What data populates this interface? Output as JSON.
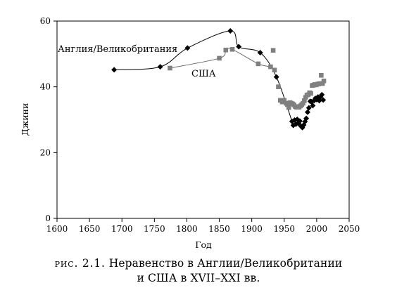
{
  "chart_data": {
    "type": "line",
    "title": "",
    "xlabel": "Год",
    "ylabel": "Джини",
    "xlim": [
      1600,
      2050
    ],
    "ylim": [
      0,
      60
    ],
    "xticks": [
      1600,
      1650,
      1700,
      1750,
      1800,
      1850,
      1900,
      1950,
      2000,
      2050
    ],
    "yticks": [
      0,
      20,
      40,
      60
    ],
    "grid": false,
    "series": [
      {
        "name": "Англия/Великобритания",
        "marker": "diamond",
        "color": "#000000",
        "connected_upto_index": 7,
        "points": [
          [
            1688,
            45.2
          ],
          [
            1759,
            46.1
          ],
          [
            1801,
            51.8
          ],
          [
            1867,
            57.0
          ],
          [
            1880,
            52.2
          ],
          [
            1913,
            50.4
          ],
          [
            1938,
            43.0
          ],
          [
            1962,
            29.5
          ],
          [
            1964,
            28.3
          ],
          [
            1966,
            29.9
          ],
          [
            1968,
            28.6
          ],
          [
            1970,
            30.1
          ],
          [
            1972,
            28.9
          ],
          [
            1974,
            29.6
          ],
          [
            1976,
            28.0
          ],
          [
            1978,
            27.6
          ],
          [
            1980,
            28.4
          ],
          [
            1982,
            29.4
          ],
          [
            1984,
            30.4
          ],
          [
            1986,
            32.3
          ],
          [
            1988,
            33.6
          ],
          [
            1990,
            35.6
          ],
          [
            1992,
            35.5
          ],
          [
            1994,
            34.3
          ],
          [
            1996,
            35.8
          ],
          [
            1998,
            36.5
          ],
          [
            2000,
            36.1
          ],
          [
            2002,
            36.9
          ],
          [
            2004,
            35.8
          ],
          [
            2006,
            37.0
          ],
          [
            2008,
            37.6
          ],
          [
            2010,
            36.0
          ]
        ]
      },
      {
        "name": "США",
        "marker": "square",
        "color": "#808080",
        "connected_upto_index": 6,
        "points": [
          [
            1774,
            45.7
          ],
          [
            1850,
            48.7
          ],
          [
            1860,
            51.2
          ],
          [
            1870,
            51.4
          ],
          [
            1910,
            47.0
          ],
          [
            1929,
            46.1
          ],
          [
            1935,
            45.1
          ],
          [
            1933,
            51.1
          ],
          [
            1941,
            40.0
          ],
          [
            1944,
            35.9
          ],
          [
            1947,
            35.4
          ],
          [
            1950,
            35.9
          ],
          [
            1953,
            35.0
          ],
          [
            1955,
            34.6
          ],
          [
            1957,
            33.7
          ],
          [
            1959,
            35.2
          ],
          [
            1961,
            35.0
          ],
          [
            1963,
            34.8
          ],
          [
            1965,
            34.5
          ],
          [
            1967,
            34.0
          ],
          [
            1969,
            33.8
          ],
          [
            1971,
            34.0
          ],
          [
            1973,
            33.8
          ],
          [
            1975,
            34.2
          ],
          [
            1977,
            34.6
          ],
          [
            1979,
            35.0
          ],
          [
            1981,
            35.8
          ],
          [
            1983,
            36.8
          ],
          [
            1985,
            37.5
          ],
          [
            1987,
            37.6
          ],
          [
            1989,
            38.2
          ],
          [
            1991,
            38.0
          ],
          [
            1993,
            40.4
          ],
          [
            1995,
            40.5
          ],
          [
            1997,
            40.7
          ],
          [
            1999,
            40.6
          ],
          [
            2001,
            40.8
          ],
          [
            2003,
            40.9
          ],
          [
            2005,
            41.0
          ],
          [
            2007,
            43.5
          ],
          [
            2009,
            41.0
          ],
          [
            2011,
            41.8
          ]
        ]
      }
    ],
    "annotations": [
      "Англия/Великобритания",
      "США"
    ]
  },
  "caption": {
    "lead": "рис. 2.1.",
    "line1": "Неравенство в Англии/Великобритании",
    "line2": "и США в XVII–XXI вв."
  }
}
